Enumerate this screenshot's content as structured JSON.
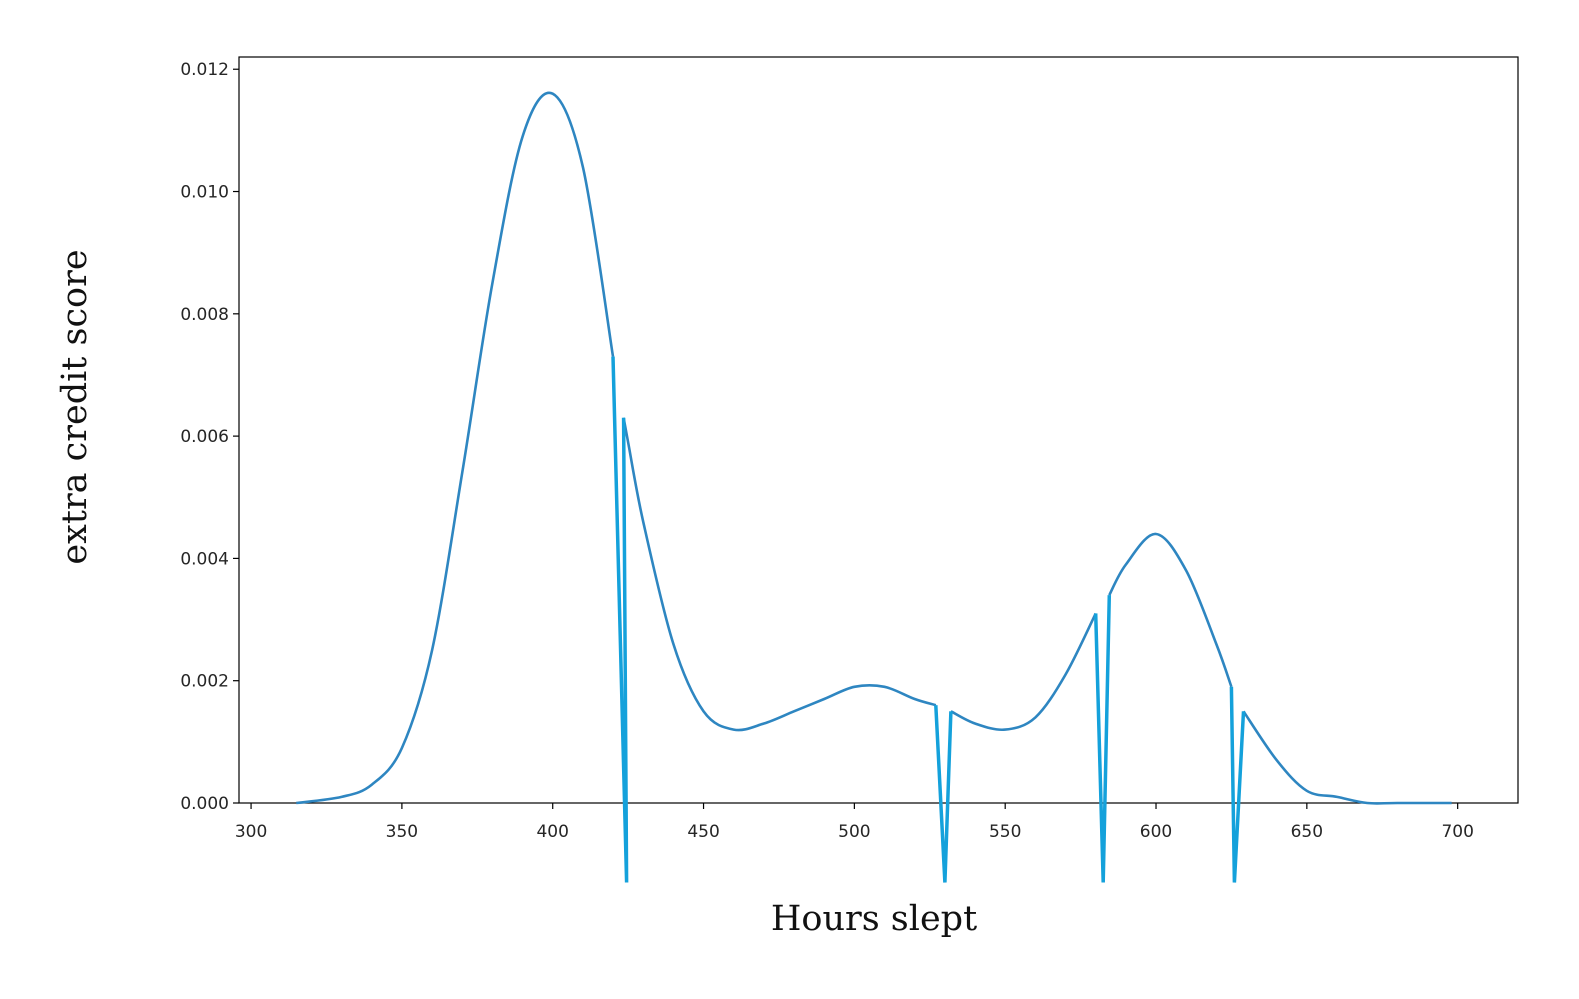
{
  "chart_data": {
    "type": "line",
    "title": "",
    "xlabel": "Hours slept",
    "ylabel": "extra credit score",
    "xlim": [
      296,
      720
    ],
    "ylim": [
      0,
      0.0122
    ],
    "grid": false,
    "legend": "none",
    "x_ticks": [
      "300",
      "350",
      "400",
      "450",
      "500",
      "550",
      "600",
      "650",
      "700"
    ],
    "y_ticks": [
      "0.000",
      "0.002",
      "0.004",
      "0.006",
      "0.008",
      "0.010",
      "0.012"
    ],
    "colors": {
      "curve": "#2e86c1",
      "spikes": "#14a1db",
      "axes": "#000000"
    },
    "series": [
      {
        "x": [
          315,
          330,
          340,
          350,
          360,
          370,
          380,
          390,
          400,
          410,
          420
        ],
        "y": [
          0.0,
          0.0001,
          0.0003,
          0.0009,
          0.0025,
          0.0054,
          0.0085,
          0.0109,
          0.0116,
          0.0104,
          0.0073
        ]
      },
      {
        "x": [
          423.5,
          425,
          430,
          440,
          450,
          460,
          470,
          480,
          490,
          500,
          510,
          520,
          527
        ],
        "y": [
          0.0063,
          0.0059,
          0.0046,
          0.0026,
          0.0015,
          0.0012,
          0.0013,
          0.0015,
          0.0017,
          0.0019,
          0.0019,
          0.0017,
          0.0016
        ]
      },
      {
        "x": [
          532,
          540,
          550,
          560,
          570,
          580
        ],
        "y": [
          0.0015,
          0.0013,
          0.0012,
          0.0014,
          0.0021,
          0.0031
        ]
      },
      {
        "x": [
          584.5,
          590,
          600,
          610,
          620,
          625
        ],
        "y": [
          0.0034,
          0.0039,
          0.0044,
          0.0038,
          0.0026,
          0.0019
        ]
      },
      {
        "x": [
          629,
          640,
          650,
          660,
          670,
          680,
          698
        ],
        "y": [
          0.0015,
          0.0007,
          0.0002,
          0.0001,
          0.0,
          0.0,
          0.0
        ]
      }
    ],
    "spikes": [
      {
        "x_top1": 420,
        "y_top1": 0.0073,
        "x_bottom": 424.5,
        "y_bottom": -0.0013,
        "x_top2": 423.5,
        "y_top2": 0.0063
      },
      {
        "x_top1": 527,
        "y_top1": 0.0016,
        "x_bottom": 530,
        "y_bottom": -0.0013,
        "x_top2": 532,
        "y_top2": 0.0015
      },
      {
        "x_top1": 580,
        "y_top1": 0.0031,
        "x_bottom": 582.5,
        "y_bottom": -0.0013,
        "x_top2": 584.5,
        "y_top2": 0.0034
      },
      {
        "x_top1": 625,
        "y_top1": 0.0019,
        "x_bottom": 626,
        "y_bottom": -0.0013,
        "x_top2": 629,
        "y_top2": 0.0015
      }
    ]
  }
}
